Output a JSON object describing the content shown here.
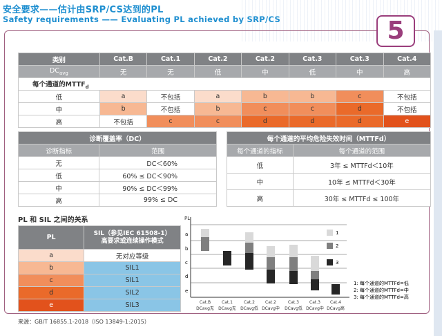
{
  "header": {
    "title_cn": "安全要求——估计由SRP/CS达到的PL",
    "title_en": "Safety requirements —— Evaluating PL achieved by SRP/CS",
    "badge": "5"
  },
  "cat_table": {
    "head": [
      "类别",
      "Cat.B",
      "Cat.1",
      "Cat.2",
      "Cat.2",
      "Cat.3",
      "Cat.3",
      "Cat.4"
    ],
    "dc_label": "DC",
    "dc_sub": "avg",
    "dc": [
      "无",
      "无",
      "低",
      "中",
      "低",
      "中",
      "高"
    ],
    "mttf_label": "每个通道的MTTF",
    "mttf_sub": "d",
    "rows": [
      {
        "label": "低",
        "cells": [
          "a",
          "不包括",
          "a",
          "b",
          "b",
          "c",
          "不包括"
        ]
      },
      {
        "label": "中",
        "cells": [
          "b",
          "不包括",
          "b",
          "c",
          "c",
          "d",
          "不包括"
        ]
      },
      {
        "label": "高",
        "cells": [
          "不包括",
          "c",
          "c",
          "d",
          "d",
          "d",
          "e"
        ]
      }
    ]
  },
  "dc_table": {
    "title": "诊断覆盖率（DC）",
    "cols": [
      "诊断指标",
      "范围"
    ],
    "rows": [
      [
        "无",
        "DC＜60%"
      ],
      [
        "低",
        "60% ≤ DC＜90%"
      ],
      [
        "中",
        "90% ≤ DC＜99%"
      ],
      [
        "高",
        "99% ≤ DC"
      ]
    ]
  },
  "mttf_table": {
    "title": "每个通道的平均危险失效时间（MTTFd）",
    "cols": [
      "每个通道的指标",
      "每个通道的范围"
    ],
    "rows": [
      [
        "低",
        "3年 ≤ MTTFd＜10年"
      ],
      [
        "中",
        "10年 ≤ MTTFd＜30年"
      ],
      [
        "高",
        "30年 ≤ MTTFd ≤ 100年"
      ]
    ]
  },
  "pl_sil": {
    "section": "PL 和 SIL 之间的关系",
    "head_pl": "PL",
    "head_sil_1": "SIL（参见IEC 61508-1）",
    "head_sil_2": "高要求或连续操作模式",
    "rows": [
      [
        "a",
        "无对应等级"
      ],
      [
        "b",
        "SIL1"
      ],
      [
        "c",
        "SIL1"
      ],
      [
        "d",
        "SIL2"
      ],
      [
        "e",
        "SIL3"
      ]
    ]
  },
  "chart": {
    "y_title": "PL",
    "y_levels": [
      "a",
      "b",
      "c",
      "d",
      "e"
    ],
    "x_labels": [
      "Cat.B",
      "Cat.1",
      "Cat.2",
      "Cat.2",
      "Cat.3",
      "Cat.3",
      "Cat.4"
    ],
    "x_sub": [
      "DCavg无",
      "DCavg无",
      "DCavg低",
      "DCavg中",
      "DCavg低",
      "DCavg中",
      "DCavg高"
    ],
    "legend": [
      "1",
      "2",
      "3"
    ],
    "notes": [
      "1: 每个通道的MTTFd=低",
      "2: 每个通道的MTTFd=中",
      "3: 每个通道的MTTFd=高"
    ],
    "colors": {
      "low": "#d9d9d9",
      "mid": "#7f7f7f",
      "high": "#262626"
    }
  },
  "source": "来源：GB/T 16855.1-2018（ISO 13849-1:2015）"
}
